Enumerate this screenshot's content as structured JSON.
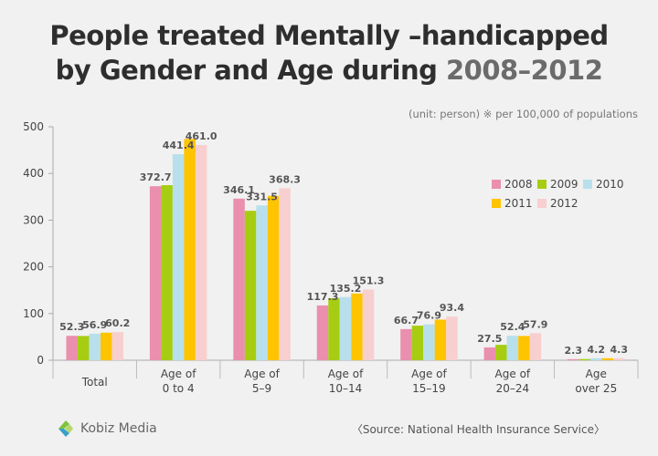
{
  "header": {
    "title_line1": "People treated Mentally –handicapped",
    "title_line2_prefix": "by Gender and Age during ",
    "title_line2_years": "2008–2012"
  },
  "unit_note": "(unit: person) ※ per 100,000 of populations",
  "source": "〈Source: National Health Insurance Service〉",
  "logo": {
    "name": "Kobiz Media",
    "icon": "kobiz-logo-icon"
  },
  "colors": {
    "2008": "#ea8fad",
    "2009": "#a7cd12",
    "2010": "#b7e0ec",
    "2011": "#ffc400",
    "2012": "#f8cfcf"
  },
  "chart_data": {
    "type": "bar",
    "title": "People treated Mentally –handicapped by Gender and Age during 2008–2012",
    "categories": [
      [
        "Total"
      ],
      [
        "Age of",
        "0 to 4"
      ],
      [
        "Age of",
        "5–9"
      ],
      [
        "Age of",
        "10–14"
      ],
      [
        "Age of",
        "15–19"
      ],
      [
        "Age of",
        "20–24"
      ],
      [
        "Age",
        "over 25"
      ]
    ],
    "series": [
      {
        "name": "2008",
        "values": [
          52.3,
          372.7,
          346.1,
          117.3,
          66.7,
          27.5,
          2.3
        ]
      },
      {
        "name": "2009",
        "values": [
          52,
          375,
          320,
          133,
          74,
          33,
          2.5
        ]
      },
      {
        "name": "2010",
        "values": [
          56.9,
          441.4,
          331.5,
          135.2,
          76.9,
          52.4,
          4.2
        ]
      },
      {
        "name": "2011",
        "values": [
          59,
          474,
          352,
          143,
          87,
          52,
          4.3
        ]
      },
      {
        "name": "2012",
        "values": [
          60.2,
          461.0,
          368.3,
          151.3,
          93.4,
          57.9,
          4.3
        ]
      }
    ],
    "data_labels": [
      {
        "category": 0,
        "series": 0,
        "text": "52.3"
      },
      {
        "category": 0,
        "series": 2,
        "text": "56.9"
      },
      {
        "category": 0,
        "series": 4,
        "text": "60.2"
      },
      {
        "category": 1,
        "series": 0,
        "text": "372.7"
      },
      {
        "category": 1,
        "series": 2,
        "text": "441.4"
      },
      {
        "category": 1,
        "series": 4,
        "text": "461.0"
      },
      {
        "category": 2,
        "series": 0,
        "text": "346.1"
      },
      {
        "category": 2,
        "series": 2,
        "text": "331.5"
      },
      {
        "category": 2,
        "series": 4,
        "text": "368.3"
      },
      {
        "category": 3,
        "series": 0,
        "text": "117.3"
      },
      {
        "category": 3,
        "series": 2,
        "text": "135.2"
      },
      {
        "category": 3,
        "series": 4,
        "text": "151.3"
      },
      {
        "category": 4,
        "series": 0,
        "text": "66.7"
      },
      {
        "category": 4,
        "series": 2,
        "text": "76.9"
      },
      {
        "category": 4,
        "series": 4,
        "text": "93.4"
      },
      {
        "category": 5,
        "series": 0,
        "text": "27.5"
      },
      {
        "category": 5,
        "series": 2,
        "text": "52.4"
      },
      {
        "category": 5,
        "series": 4,
        "text": "57.9"
      },
      {
        "category": 6,
        "series": 0,
        "text": "2.3"
      },
      {
        "category": 6,
        "series": 2,
        "text": "4.2"
      },
      {
        "category": 6,
        "series": 4,
        "text": "4.3"
      }
    ],
    "xlabel": "",
    "ylabel": "",
    "ylim": [
      0,
      500
    ],
    "yticks": [
      0,
      100,
      200,
      300,
      400,
      500
    ],
    "grid": false,
    "legend": "top-right"
  }
}
